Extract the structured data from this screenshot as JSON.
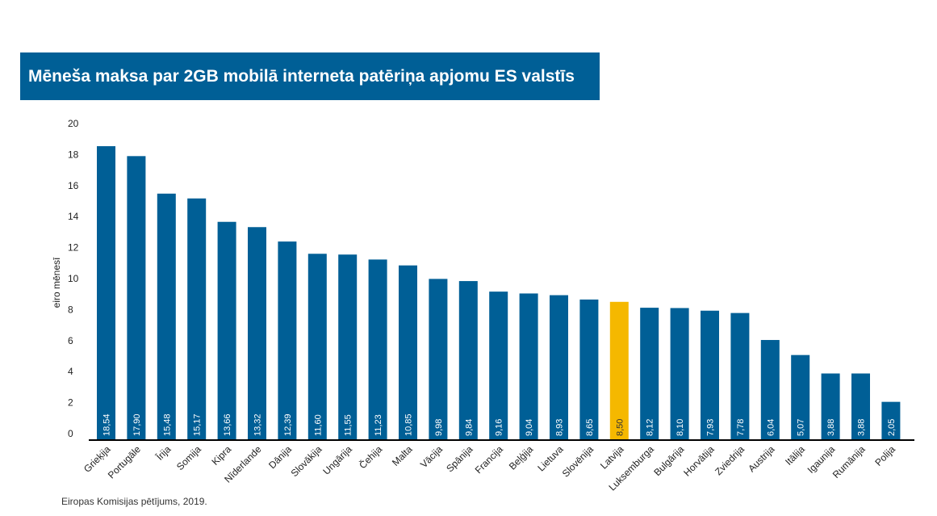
{
  "chart_data": {
    "type": "bar",
    "title": "Mēneša maksa par 2GB mobilā interneta patēriņa apjomu ES valstīs",
    "ylabel": "eiro mēnesī",
    "xlabel": "",
    "ylim": [
      0,
      20
    ],
    "yticks": [
      0,
      2,
      4,
      6,
      8,
      10,
      12,
      14,
      16,
      18,
      20
    ],
    "categories": [
      "Grieķija",
      "Portugāle",
      "Īrija",
      "Somija",
      "Kipra",
      "Nīderlande",
      "Dānija",
      "Slovākija",
      "Ungārija",
      "Čehija",
      "Malta",
      "Vācija",
      "Spānija",
      "Francija",
      "Beļģija",
      "Lietuva",
      "Slovēnija",
      "Latvija",
      "Luksemburga",
      "Bulgārija",
      "Horvātija",
      "Zviedrija",
      "Austrija",
      "Itālija",
      "Igaunija",
      "Rumānija",
      "Polija"
    ],
    "values": [
      18.54,
      17.9,
      15.48,
      15.17,
      13.66,
      13.32,
      12.39,
      11.6,
      11.55,
      11.23,
      10.85,
      9.98,
      9.84,
      9.16,
      9.04,
      8.93,
      8.65,
      8.5,
      8.12,
      8.1,
      7.93,
      7.78,
      6.04,
      5.07,
      3.88,
      3.88,
      2.05
    ],
    "value_labels": [
      "18,54",
      "17,90",
      "15,48",
      "15,17",
      "13,66",
      "13,32",
      "12,39",
      "11,60",
      "11,55",
      "11,23",
      "10,85",
      "9,98",
      "9,84",
      "9,16",
      "9,04",
      "8,93",
      "8,65",
      "8,50",
      "8,12",
      "8,10",
      "7,93",
      "7,78",
      "6,04",
      "5,07",
      "3,88",
      "3,88",
      "2,05"
    ],
    "highlight": "Latvija",
    "grid": false
  },
  "colors": {
    "bar": "#005f96",
    "highlight": "#f5b800",
    "banner": "#005f96"
  },
  "source": "Eiropas Komisijas pētījums, 2019."
}
